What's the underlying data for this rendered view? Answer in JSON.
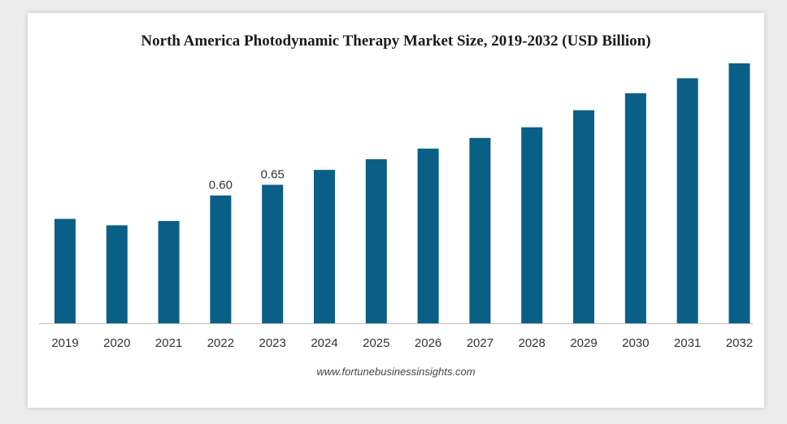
{
  "chart_data": {
    "type": "bar",
    "title": "North America Photodynamic Therapy Market Size, 2019-2032 (USD Billion)",
    "xlabel": "",
    "ylabel": "",
    "categories": [
      "2019",
      "2020",
      "2021",
      "2022",
      "2023",
      "2024",
      "2025",
      "2026",
      "2027",
      "2028",
      "2029",
      "2030",
      "2031",
      "2032"
    ],
    "values": [
      0.49,
      0.46,
      0.48,
      0.6,
      0.65,
      0.72,
      0.77,
      0.82,
      0.87,
      0.92,
      1.0,
      1.08,
      1.15,
      1.22
    ],
    "data_labels": [
      "",
      "",
      "",
      "0.60",
      "0.65",
      "",
      "",
      "",
      "",
      "",
      "",
      "",
      "",
      ""
    ],
    "ylim": [
      0,
      1.22
    ],
    "grid": false,
    "bar_color": "#0a5f86"
  },
  "source": "www.fortunebusinessinsights.com"
}
